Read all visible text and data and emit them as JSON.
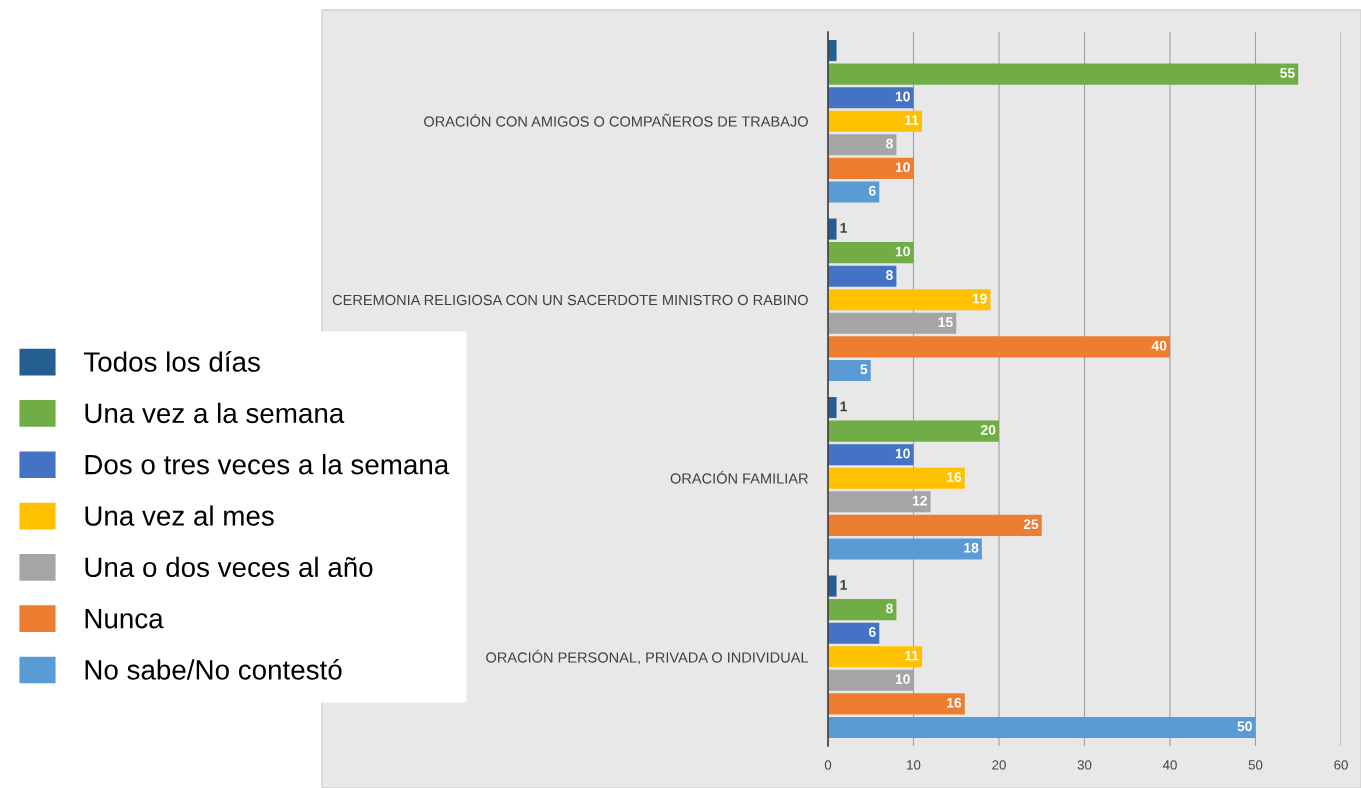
{
  "chart_data": {
    "type": "bar",
    "orientation": "horizontal",
    "categories": [
      "ORACIÓN CON AMIGOS O COMPAÑEROS DE TRABAJO",
      "CEREMONIA RELIGIOSA CON UN SACERDOTE MINISTRO O RABINO",
      "ORACIÓN FAMILIAR",
      "ORACIÓN PERSONAL, PRIVADA O INDIVIDUAL"
    ],
    "series": [
      {
        "name": "Todos los días",
        "color": "#255e91",
        "values": [
          1,
          1,
          1,
          1
        ],
        "value_labels": [
          null,
          "1",
          "1",
          "1"
        ]
      },
      {
        "name": "Una vez a la semana",
        "color": "#70ad47",
        "values": [
          55,
          10,
          20,
          8
        ],
        "value_labels": [
          "55",
          "10",
          "20",
          "8"
        ]
      },
      {
        "name": "Dos o tres veces a la semana",
        "color": "#4472c4",
        "values": [
          10,
          8,
          10,
          6
        ],
        "value_labels": [
          "10",
          "8",
          "10",
          "6"
        ]
      },
      {
        "name": "Una vez al mes",
        "color": "#ffc000",
        "values": [
          11,
          19,
          16,
          11
        ],
        "value_labels": [
          "11",
          "19",
          "16",
          "11"
        ]
      },
      {
        "name": "Una o dos veces al año",
        "color": "#a5a5a5",
        "values": [
          8,
          15,
          12,
          10
        ],
        "value_labels": [
          "8",
          "15",
          "12",
          "10"
        ]
      },
      {
        "name": "Nunca",
        "color": "#ed7d31",
        "values": [
          10,
          40,
          25,
          16
        ],
        "value_labels": [
          "10",
          "40",
          "25",
          "16"
        ]
      },
      {
        "name": "No sabe/No contestó",
        "color": "#5b9bd5",
        "values": [
          6,
          5,
          18,
          50
        ],
        "value_labels": [
          "6",
          "5",
          "18",
          "50"
        ]
      }
    ],
    "xlim": [
      0,
      60
    ],
    "xticks": [
      0,
      10,
      20,
      30,
      40,
      50,
      60
    ],
    "grid": "x",
    "legend": "left"
  }
}
